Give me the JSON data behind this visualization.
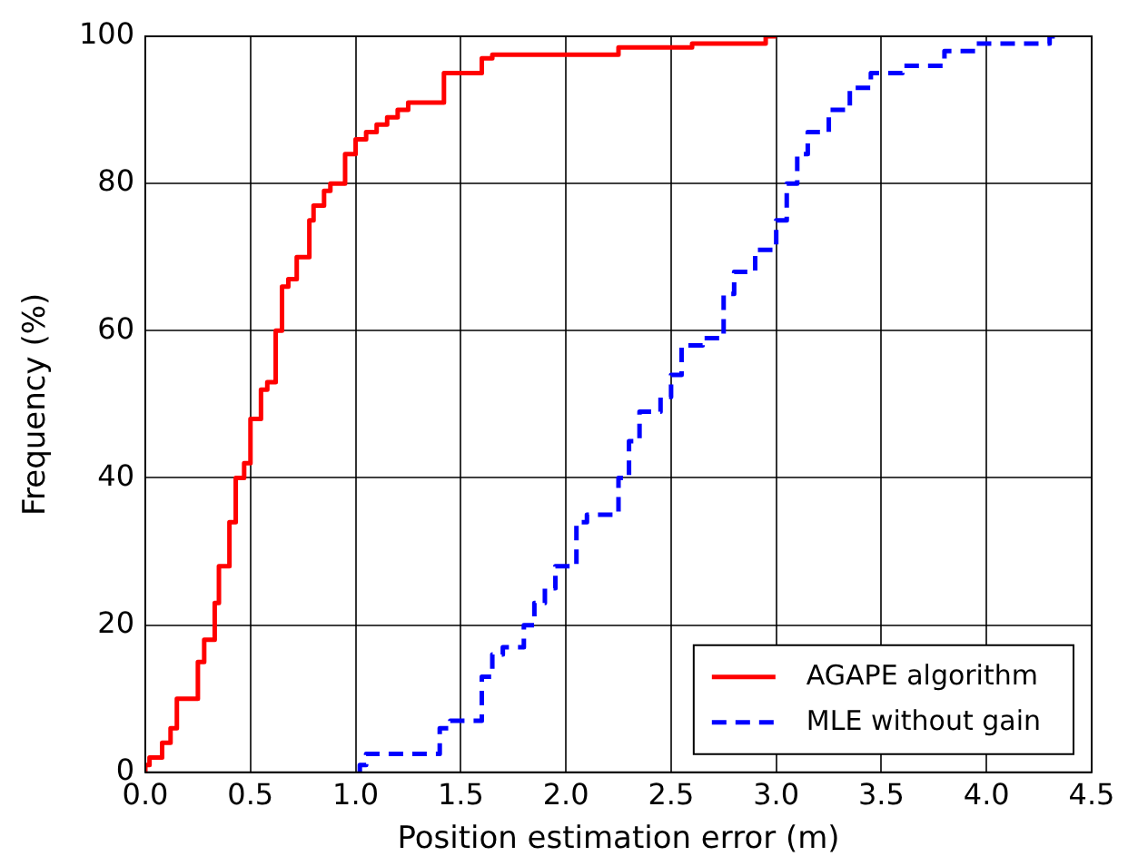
{
  "chart_data": {
    "type": "step",
    "xlabel": "Position estimation error (m)",
    "ylabel": "Frequency (%)",
    "xlim": [
      0,
      4.5
    ],
    "xticks": [
      {
        "value": 0,
        "label": "0.0"
      },
      {
        "value": 0.5,
        "label": "0.5"
      },
      {
        "value": 1,
        "label": "1.0"
      },
      {
        "value": 1.5,
        "label": "1.5"
      },
      {
        "value": 2,
        "label": "2.0"
      },
      {
        "value": 2.5,
        "label": "2.5"
      },
      {
        "value": 3,
        "label": "3.0"
      },
      {
        "value": 3.5,
        "label": "3.5"
      },
      {
        "value": 4,
        "label": "4.0"
      },
      {
        "value": 4.5,
        "label": "4.5"
      }
    ],
    "ylim": [
      0,
      100
    ],
    "yticks": [
      0,
      20,
      40,
      60,
      80,
      100
    ],
    "grid": true,
    "legend": "bottom right",
    "marker": "none",
    "series": [
      {
        "name": "AGAPE algorithm",
        "color": "#ff0000",
        "line_style": "solid",
        "x": [
          0,
          0.02,
          0.08,
          0.12,
          0.15,
          0.18,
          0.25,
          0.28,
          0.33,
          0.35,
          0.4,
          0.43,
          0.47,
          0.5,
          0.55,
          0.58,
          0.62,
          0.65,
          0.68,
          0.72,
          0.78,
          0.8,
          0.85,
          0.88,
          0.95,
          1.0,
          1.05,
          1.1,
          1.15,
          1.2,
          1.25,
          1.35,
          1.42,
          1.5,
          1.6,
          1.65,
          1.75,
          2.25,
          2.3,
          2.6,
          2.63,
          2.95,
          3.0
        ],
        "values": [
          0,
          1,
          2,
          4,
          6,
          10,
          10,
          15,
          18,
          23,
          28,
          34,
          40,
          42,
          48,
          52,
          53,
          60,
          66,
          67,
          70,
          75,
          77,
          79,
          80,
          84,
          86,
          87,
          88,
          89,
          90,
          91,
          91,
          95,
          95,
          97,
          97.5,
          97.5,
          98.5,
          98.5,
          99,
          99,
          100
        ]
      },
      {
        "name": "MLE without gain",
        "color": "#0000ff",
        "line_style": "dashed",
        "x": [
          1.02,
          1.05,
          1.15,
          1.4,
          1.45,
          1.6,
          1.65,
          1.7,
          1.8,
          1.85,
          1.9,
          1.95,
          2.05,
          2.1,
          2.25,
          2.3,
          2.35,
          2.45,
          2.5,
          2.55,
          2.65,
          2.75,
          2.8,
          2.9,
          3.0,
          3.05,
          3.1,
          3.15,
          3.25,
          3.35,
          3.45,
          3.6,
          3.8,
          3.95,
          4.05,
          4.3,
          4.35
        ],
        "values": [
          0,
          1,
          2.5,
          2.5,
          6,
          7,
          13,
          16,
          17,
          20,
          23,
          25,
          28,
          34,
          35,
          40,
          45,
          49,
          51,
          54,
          58,
          59,
          65,
          68,
          71,
          75,
          80,
          84,
          87,
          90,
          93,
          95,
          96,
          98,
          99,
          99,
          100
        ]
      }
    ]
  }
}
